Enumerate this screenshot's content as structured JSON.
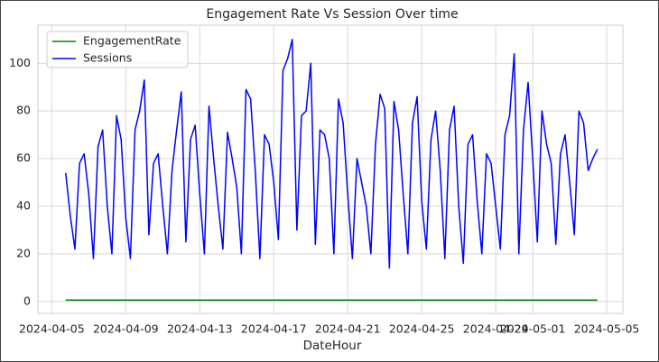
{
  "chart_data": {
    "type": "line",
    "title": "Engagement Rate Vs Session Over time",
    "xlabel": "DateHour",
    "x": [
      "2024-04-05 18:00",
      "2024-04-06 00:00",
      "2024-04-06 06:00",
      "2024-04-06 12:00",
      "2024-04-06 18:00",
      "2024-04-07 00:00",
      "2024-04-07 06:00",
      "2024-04-07 12:00",
      "2024-04-07 18:00",
      "2024-04-08 00:00",
      "2024-04-08 06:00",
      "2024-04-08 12:00",
      "2024-04-08 18:00",
      "2024-04-09 00:00",
      "2024-04-09 06:00",
      "2024-04-09 12:00",
      "2024-04-09 18:00",
      "2024-04-10 00:00",
      "2024-04-10 06:00",
      "2024-04-10 12:00",
      "2024-04-10 18:00",
      "2024-04-11 00:00",
      "2024-04-11 06:00",
      "2024-04-11 12:00",
      "2024-04-11 18:00",
      "2024-04-12 00:00",
      "2024-04-12 06:00",
      "2024-04-12 12:00",
      "2024-04-12 18:00",
      "2024-04-13 00:00",
      "2024-04-13 06:00",
      "2024-04-13 12:00",
      "2024-04-13 18:00",
      "2024-04-14 00:00",
      "2024-04-14 06:00",
      "2024-04-14 12:00",
      "2024-04-14 18:00",
      "2024-04-15 00:00",
      "2024-04-15 06:00",
      "2024-04-15 12:00",
      "2024-04-15 18:00",
      "2024-04-16 00:00",
      "2024-04-16 06:00",
      "2024-04-16 12:00",
      "2024-04-16 18:00",
      "2024-04-17 00:00",
      "2024-04-17 06:00",
      "2024-04-17 12:00",
      "2024-04-17 18:00",
      "2024-04-18 00:00",
      "2024-04-18 06:00",
      "2024-04-18 12:00",
      "2024-04-18 18:00",
      "2024-04-19 00:00",
      "2024-04-19 06:00",
      "2024-04-19 12:00",
      "2024-04-19 18:00",
      "2024-04-20 00:00",
      "2024-04-20 06:00",
      "2024-04-20 12:00",
      "2024-04-20 18:00",
      "2024-04-21 00:00",
      "2024-04-21 06:00",
      "2024-04-21 12:00",
      "2024-04-21 18:00",
      "2024-04-22 00:00",
      "2024-04-22 06:00",
      "2024-04-22 12:00",
      "2024-04-22 18:00",
      "2024-04-23 00:00",
      "2024-04-23 06:00",
      "2024-04-23 12:00",
      "2024-04-23 18:00",
      "2024-04-24 00:00",
      "2024-04-24 06:00",
      "2024-04-24 12:00",
      "2024-04-24 18:00",
      "2024-04-25 00:00",
      "2024-04-25 06:00",
      "2024-04-25 12:00",
      "2024-04-25 18:00",
      "2024-04-26 00:00",
      "2024-04-26 06:00",
      "2024-04-26 12:00",
      "2024-04-26 18:00",
      "2024-04-27 00:00",
      "2024-04-27 06:00",
      "2024-04-27 12:00",
      "2024-04-27 18:00",
      "2024-04-28 00:00",
      "2024-04-28 06:00",
      "2024-04-28 12:00",
      "2024-04-28 18:00",
      "2024-04-29 00:00",
      "2024-04-29 06:00",
      "2024-04-29 12:00",
      "2024-04-29 18:00",
      "2024-04-30 00:00",
      "2024-04-30 06:00",
      "2024-04-30 12:00",
      "2024-04-30 18:00",
      "2024-05-01 00:00",
      "2024-05-01 06:00",
      "2024-05-01 12:00",
      "2024-05-01 18:00",
      "2024-05-02 00:00",
      "2024-05-02 06:00",
      "2024-05-02 12:00",
      "2024-05-02 18:00",
      "2024-05-03 00:00",
      "2024-05-03 06:00",
      "2024-05-03 12:00",
      "2024-05-03 18:00",
      "2024-05-04 00:00",
      "2024-05-04 06:00",
      "2024-05-04 12:00"
    ],
    "series": [
      {
        "name": "EngagementRate",
        "color": "#008000",
        "values": [
          0.6,
          0.6,
          0.6,
          0.6,
          0.6,
          0.6,
          0.6,
          0.6,
          0.6,
          0.6,
          0.6,
          0.6,
          0.6,
          0.6,
          0.6,
          0.6,
          0.6,
          0.6,
          0.6,
          0.6,
          0.6,
          0.6,
          0.6,
          0.6,
          0.6,
          0.6,
          0.6,
          0.6,
          0.6,
          0.6,
          0.6,
          0.6,
          0.6,
          0.6,
          0.6,
          0.6,
          0.6,
          0.6,
          0.6,
          0.6,
          0.6,
          0.6,
          0.6,
          0.6,
          0.6,
          0.6,
          0.6,
          0.6,
          0.6,
          0.6,
          0.6,
          0.6,
          0.6,
          0.6,
          0.6,
          0.6,
          0.6,
          0.6,
          0.6,
          0.6,
          0.6,
          0.6,
          0.6,
          0.6,
          0.6,
          0.6,
          0.6,
          0.6,
          0.6,
          0.6,
          0.6,
          0.6,
          0.6,
          0.6,
          0.6,
          0.6,
          0.6,
          0.6,
          0.6,
          0.6,
          0.6,
          0.6,
          0.6,
          0.6,
          0.6,
          0.6,
          0.6,
          0.6,
          0.6,
          0.6,
          0.6,
          0.6,
          0.6,
          0.6,
          0.6,
          0.6,
          0.6,
          0.6,
          0.6,
          0.6,
          0.6,
          0.6,
          0.6,
          0.6,
          0.6,
          0.6,
          0.6,
          0.6,
          0.6,
          0.6,
          0.6,
          0.6,
          0.6,
          0.6,
          0.6,
          0.6
        ]
      },
      {
        "name": "Sessions",
        "color": "#0000ff",
        "values": [
          54,
          36,
          22,
          58,
          62,
          45,
          18,
          65,
          72,
          40,
          20,
          78,
          68,
          35,
          18,
          72,
          80,
          93,
          28,
          58,
          62,
          40,
          20,
          55,
          72,
          88,
          25,
          68,
          74,
          45,
          20,
          82,
          60,
          40,
          22,
          71,
          60,
          48,
          20,
          89,
          85,
          55,
          18,
          70,
          66,
          50,
          26,
          97,
          102,
          110,
          30,
          78,
          80,
          100,
          24,
          72,
          70,
          60,
          20,
          85,
          75,
          45,
          18,
          60,
          50,
          40,
          20,
          66,
          87,
          81,
          14,
          84,
          72,
          45,
          20,
          75,
          86,
          42,
          22,
          68,
          80,
          55,
          18,
          72,
          82,
          40,
          16,
          66,
          70,
          42,
          20,
          62,
          58,
          40,
          22,
          70,
          78,
          104,
          20,
          72,
          92,
          60,
          25,
          80,
          66,
          58,
          24,
          62,
          70,
          50,
          28,
          80,
          75,
          55,
          60,
          64
        ]
      }
    ],
    "xlim": [
      "2024-04-04 06:00",
      "2024-05-05 21:00"
    ],
    "xticks": [
      "2024-04-05",
      "2024-04-09",
      "2024-04-13",
      "2024-04-17",
      "2024-04-21",
      "2024-04-25",
      "2024-04-29",
      "2024-05-01",
      "2024-05-05"
    ],
    "ylim": [
      -5,
      116
    ],
    "yticks": [
      0,
      20,
      40,
      60,
      80,
      100
    ],
    "grid": true,
    "legend": "upper left"
  }
}
